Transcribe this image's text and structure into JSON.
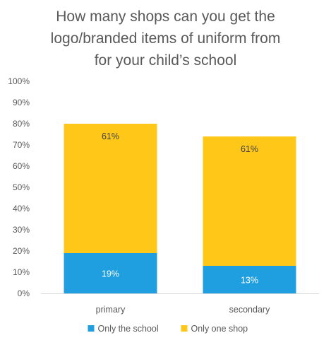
{
  "chart_data": {
    "type": "bar",
    "stacked": true,
    "title_lines": [
      "How many shops can you get the",
      "logo/branded items of uniform from",
      "for your child’s school"
    ],
    "categories": [
      "primary",
      "secondary"
    ],
    "series": [
      {
        "name": "Only the school",
        "values": [
          19,
          13
        ],
        "labels": [
          "19%",
          "13%"
        ],
        "color": "#1F9FE0"
      },
      {
        "name": "Only one shop",
        "values": [
          61,
          61
        ],
        "labels": [
          "61%",
          "61%"
        ],
        "color": "#FFC819"
      }
    ],
    "ylim": [
      0,
      100
    ],
    "yticks": [
      "0%",
      "10%",
      "20%",
      "30%",
      "40%",
      "50%",
      "60%",
      "70%",
      "80%",
      "90%",
      "100%"
    ],
    "grid": false,
    "legend_position": "bottom"
  }
}
